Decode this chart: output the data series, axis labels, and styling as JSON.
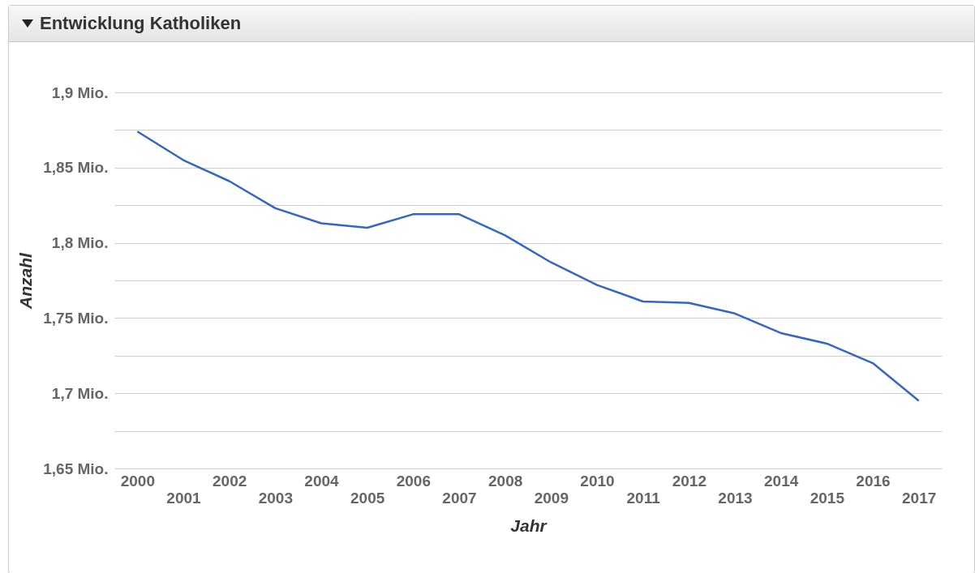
{
  "chart_data": {
    "type": "line",
    "title": "Entwicklung Katholiken",
    "xlabel": "Jahr",
    "ylabel": "Anzahl",
    "categories": [
      "2000",
      "2001",
      "2002",
      "2003",
      "2004",
      "2005",
      "2006",
      "2007",
      "2008",
      "2009",
      "2010",
      "2011",
      "2012",
      "2013",
      "2014",
      "2015",
      "2016",
      "2017"
    ],
    "series": [
      {
        "color": "#3366cc",
        "values": [
          1.874,
          1.855,
          1.841,
          1.823,
          1.813,
          1.81,
          1.819,
          1.819,
          1.805,
          1.787,
          1.772,
          1.761,
          1.76,
          1.753,
          1.74,
          1.733,
          1.72,
          1.695
        ]
      }
    ],
    "ylim": [
      1.65,
      1.9
    ],
    "yticks": [
      {
        "value": 1.65,
        "label": "1,65 Mio."
      },
      {
        "value": 1.675,
        "label": null
      },
      {
        "value": 1.7,
        "label": "1,7 Mio."
      },
      {
        "value": 1.725,
        "label": null
      },
      {
        "value": 1.75,
        "label": "1,75 Mio."
      },
      {
        "value": 1.775,
        "label": null
      },
      {
        "value": 1.8,
        "label": "1,8 Mio."
      },
      {
        "value": 1.825,
        "label": null
      },
      {
        "value": 1.85,
        "label": "1,85 Mio."
      },
      {
        "value": 1.875,
        "label": null
      },
      {
        "value": 1.9,
        "label": "1,9 Mio."
      }
    ],
    "grid": "y",
    "marker": "none",
    "line_style": "solid"
  }
}
